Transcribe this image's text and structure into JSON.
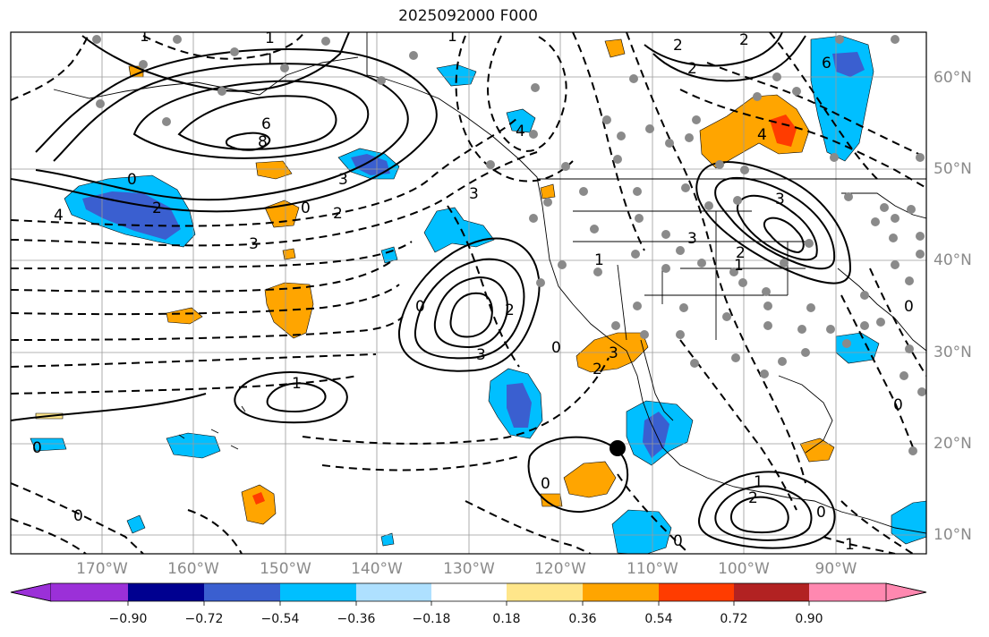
{
  "title": "2025092000 F000",
  "lat_labels": [
    "60°N",
    "50°N",
    "40°N",
    "30°N",
    "20°N",
    "10°N"
  ],
  "lon_labels": [
    "170°W",
    "160°W",
    "150°W",
    "140°W",
    "130°W",
    "120°W",
    "110°W",
    "100°W",
    "90°W"
  ],
  "colorbar": {
    "ticks": [
      "−0.90",
      "−0.72",
      "−0.54",
      "−0.36",
      "−0.18",
      "0.18",
      "0.36",
      "0.54",
      "0.72",
      "0.90"
    ],
    "colors": [
      "#9b30d8",
      "#000090",
      "#3a5fd0",
      "#00bfff",
      "#aee0ff",
      "#ffffff",
      "#ffe68a",
      "#ffa500",
      "#ff3c00",
      "#b22222",
      "#ff88b0"
    ]
  },
  "contour_labels": [
    "1",
    "1",
    "6",
    "8",
    "3",
    "2",
    "0",
    "4",
    "3",
    "2",
    "0",
    "2",
    "4",
    "3",
    "1",
    "3",
    "2",
    "0",
    "3",
    "1",
    "0",
    "1",
    "2",
    "3",
    "6",
    "2",
    "2",
    "3",
    "1",
    "0",
    "4",
    "0",
    "0",
    "2",
    "1",
    "1",
    "0",
    "0",
    "2",
    "0",
    "0",
    "1"
  ],
  "shading_colors": {
    "light_blue": "#aee0ff",
    "sky_blue": "#00bfff",
    "royal_blue": "#3a5fd0",
    "orange": "#ffa500",
    "red_orange": "#ff3c00",
    "yellow": "#ffe68a"
  }
}
